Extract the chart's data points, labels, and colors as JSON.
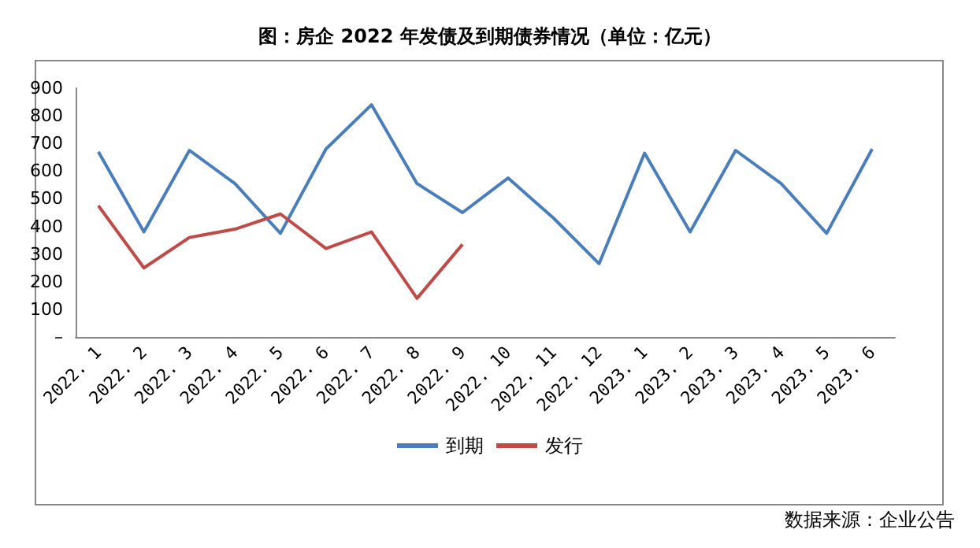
{
  "chart_data": {
    "type": "line",
    "title": "图：房企 2022 年发债及到期债券情况（单位：亿元）",
    "categories": [
      "2022. 1",
      "2022. 2",
      "2022. 3",
      "2022. 4",
      "2022. 5",
      "2022. 6",
      "2022. 7",
      "2022. 8",
      "2022. 9",
      "2022. 10",
      "2022. 11",
      "2022. 12",
      "2023. 1",
      "2023. 2",
      "2023. 3",
      "2023. 4",
      "2023. 5",
      "2023. 6"
    ],
    "series": [
      {
        "name": "到期",
        "color": "#4a7ebb",
        "values": [
          670,
          380,
          675,
          555,
          375,
          680,
          840,
          555,
          450,
          575,
          430,
          265,
          665,
          380,
          675,
          555,
          375,
          680
        ]
      },
      {
        "name": "发行",
        "color": "#be4b48",
        "values": [
          475,
          250,
          360,
          390,
          445,
          320,
          380,
          140,
          335,
          null,
          null,
          null,
          null,
          null,
          null,
          null,
          null,
          null
        ]
      }
    ],
    "ylim": [
      0,
      900
    ],
    "yticks": [
      {
        "value": 0,
        "label": "–"
      },
      100,
      200,
      300,
      400,
      500,
      600,
      700,
      800,
      900
    ],
    "grid": false,
    "legend": "bottom",
    "marker": "none",
    "line_style": "solid",
    "annotations": [
      "数据来源：企业公告"
    ]
  }
}
